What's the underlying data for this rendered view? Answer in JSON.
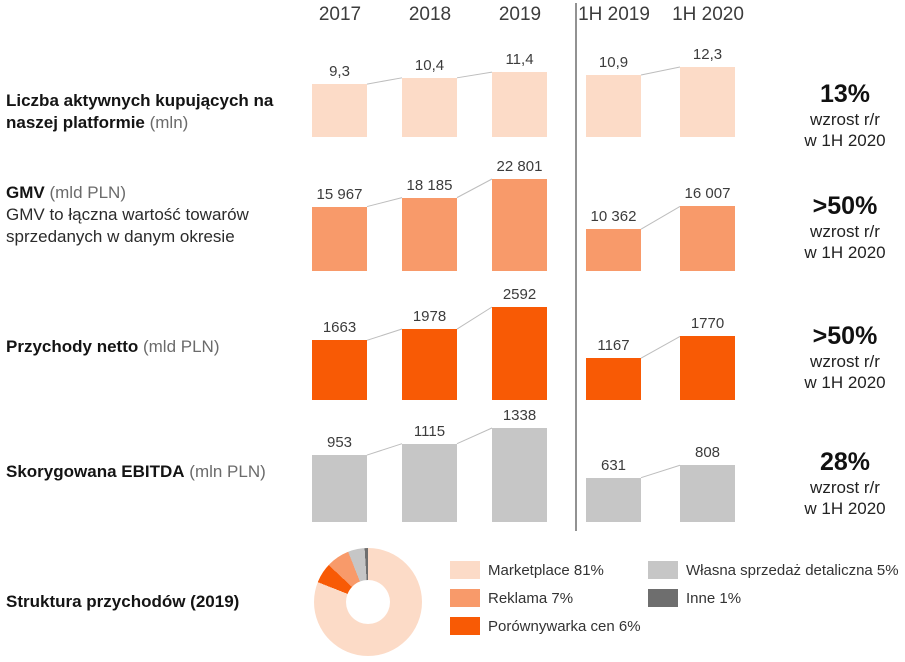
{
  "header": {
    "columns": [
      "2017",
      "2018",
      "2019",
      "1H 2019",
      "1H 2020"
    ]
  },
  "chart_data": [
    {
      "type": "bar",
      "name": "active-buyers",
      "metric": "Liczba aktywnych kupujących na naszej platformie",
      "metric_unit": "(mln)",
      "metric_sub": "",
      "categories": [
        "2017",
        "2018",
        "2019",
        "1H 2019",
        "1H 2020"
      ],
      "values": [
        9.3,
        10.4,
        11.4,
        10.9,
        12.3
      ],
      "value_labels": [
        "9,3",
        "10,4",
        "11,4",
        "10,9",
        "12,3"
      ],
      "color": "#fcdbc7",
      "growth_pct": "13%",
      "growth_line1": "wzrost r/r",
      "growth_line2": "w 1H 2020"
    },
    {
      "type": "bar",
      "name": "gmv",
      "metric": "GMV",
      "metric_unit": "(mld PLN)",
      "metric_sub": "GMV to łączna wartość towarów sprzedanych w danym okresie",
      "categories": [
        "2017",
        "2018",
        "2019",
        "1H 2019",
        "1H 2020"
      ],
      "values": [
        15967,
        18185,
        22801,
        10362,
        16007
      ],
      "value_labels": [
        "15 967",
        "18 185",
        "22 801",
        "10 362",
        "16 007"
      ],
      "color": "#f89a6a",
      "growth_pct": ">50%",
      "growth_line1": "wzrost r/r",
      "growth_line2": "w 1H 2020"
    },
    {
      "type": "bar",
      "name": "net-revenue",
      "metric": "Przychody netto",
      "metric_unit": "(mld PLN)",
      "metric_sub": "",
      "categories": [
        "2017",
        "2018",
        "2019",
        "1H 2019",
        "1H 2020"
      ],
      "values": [
        1663,
        1978,
        2592,
        1167,
        1770
      ],
      "value_labels": [
        "1663",
        "1978",
        "2592",
        "1167",
        "1770"
      ],
      "color": "#f85a05",
      "growth_pct": ">50%",
      "growth_line1": "wzrost r/r",
      "growth_line2": "w 1H 2020"
    },
    {
      "type": "bar",
      "name": "adjusted-ebitda",
      "metric": "Skorygowana EBITDA",
      "metric_unit": "(mln PLN)",
      "metric_sub": "",
      "categories": [
        "2017",
        "2018",
        "2019",
        "1H 2019",
        "1H 2020"
      ],
      "values": [
        953,
        1115,
        1338,
        631,
        808
      ],
      "value_labels": [
        "953",
        "1115",
        "1338",
        "631",
        "808"
      ],
      "color": "#c6c6c6",
      "growth_pct": "28%",
      "growth_line1": "wzrost r/r",
      "growth_line2": "w 1H 2020"
    },
    {
      "type": "pie",
      "name": "revenue-structure",
      "metric": "Struktura przychodów (2019)",
      "slices": [
        {
          "label": "Marketplace 81%",
          "value": 81,
          "color": "#fcdbc7"
        },
        {
          "label": "Reklama 7%",
          "value": 7,
          "color": "#f89a6a"
        },
        {
          "label": "Porównywarka cen 6%",
          "value": 6,
          "color": "#f85a05"
        },
        {
          "label": "Własna sprzedaż detaliczna 5%",
          "value": 5,
          "color": "#c6c6c6"
        },
        {
          "label": "Inne 1%",
          "value": 1,
          "color": "#6e6e6e"
        }
      ]
    }
  ]
}
